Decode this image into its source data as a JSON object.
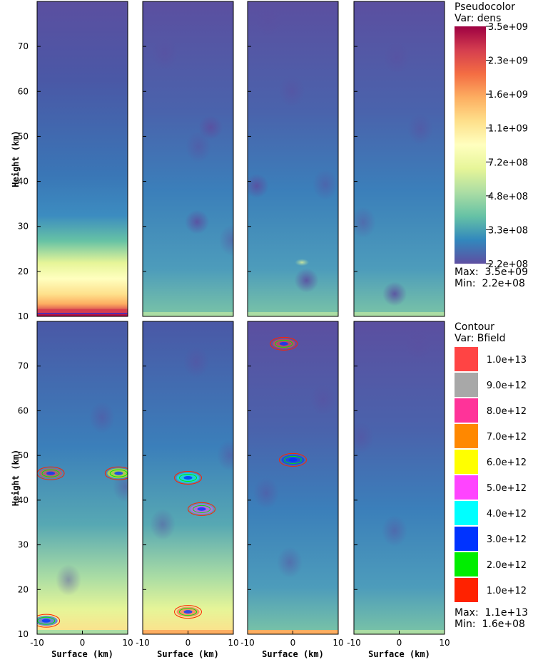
{
  "figure": {
    "y_ticks": [
      "10",
      "20",
      "30",
      "40",
      "50",
      "60",
      "70"
    ],
    "x_ticks": [
      "-10",
      "0",
      "10"
    ],
    "x_label": "Surface (km)",
    "y_label": "Height (km)",
    "colors": {
      "background_deep": "#5b4fa0",
      "background_mid": "#3b7fba",
      "frame": "#000000"
    }
  },
  "pseudocolor_legend": {
    "title": "Pseudocolor",
    "variable": "Var: dens",
    "labels": [
      "3.5e+09",
      "2.3e+09",
      "1.6e+09",
      "1.1e+09",
      "7.2e+08",
      "4.8e+08",
      "3.3e+08",
      "2.2e+08"
    ],
    "max_text": "Max:  3.5e+09",
    "min_text": "Min:  2.2e+08",
    "gradient_colors": [
      "#9e0142",
      "#d53e4f",
      "#f46d43",
      "#fdae61",
      "#fee08b",
      "#ffffbf",
      "#e6f598",
      "#abdda4",
      "#66c2a5",
      "#3288bd",
      "#5e4fa2"
    ]
  },
  "contour_legend": {
    "title": "Contour",
    "variable": "Var: Bfield",
    "labels": [
      "1.0e+13",
      "9.0e+12",
      "8.0e+12",
      "7.0e+12",
      "6.0e+12",
      "5.0e+12",
      "4.0e+12",
      "3.0e+12",
      "2.0e+12",
      "1.0e+12"
    ],
    "colors": [
      "#ff4444",
      "#a8a8a8",
      "#ff3399",
      "#ff8800",
      "#ffff00",
      "#ff44ff",
      "#00ffff",
      "#0033ff",
      "#00ee00",
      "#ff2200"
    ],
    "max_text": "Max:  1.1e+13",
    "min_text": "Min:  1.6e+08"
  },
  "chart_data": {
    "type": "heatmap",
    "description_axes": {
      "xlabel": "Surface (km)",
      "ylabel": "Height (km)",
      "xlim": [
        -10,
        10
      ],
      "ylim": [
        10,
        80
      ]
    },
    "panels": [
      {
        "row": 0,
        "col": 0,
        "field": "dens",
        "dense_layer_top_km": 21,
        "features": [
          {
            "x": -5,
            "y": 11,
            "value": 3500000000.0
          }
        ]
      },
      {
        "row": 0,
        "col": 1,
        "field": "dens",
        "features": [
          {
            "x": 2,
            "y": 31,
            "value": 220000000.0
          },
          {
            "x": 5,
            "y": 52,
            "value": 220000000.0
          }
        ]
      },
      {
        "row": 0,
        "col": 2,
        "field": "dens",
        "features": [
          {
            "x": 3,
            "y": 18,
            "value": 220000000.0
          },
          {
            "x": 2,
            "y": 22,
            "value": 1100000000.0
          },
          {
            "x": -8,
            "y": 39,
            "value": 220000000.0
          }
        ]
      },
      {
        "row": 0,
        "col": 3,
        "field": "dens",
        "features": [
          {
            "x": -1,
            "y": 15,
            "value": 220000000.0
          }
        ]
      },
      {
        "row": 1,
        "col": 0,
        "field": "dens",
        "features": [
          {
            "x": -7,
            "y": 46,
            "value": 11000000000000.0
          },
          {
            "x": 8,
            "y": 46,
            "value": 6000000000000.0
          },
          {
            "x": -8,
            "y": 13,
            "value": 3000000000000.0
          }
        ]
      },
      {
        "row": 1,
        "col": 1,
        "field": "dens",
        "features": [
          {
            "x": 0,
            "y": 45,
            "value": 4000000000000.0
          },
          {
            "x": 3,
            "y": 38,
            "value": 5000000000000.0
          },
          {
            "x": 0,
            "y": 15,
            "value": 10000000000000.0
          }
        ]
      },
      {
        "row": 1,
        "col": 2,
        "field": "dens",
        "features": [
          {
            "x": -2,
            "y": 75,
            "value": 10000000000000.0
          },
          {
            "x": 0,
            "y": 49,
            "value": 3000000000000.0
          }
        ]
      },
      {
        "row": 1,
        "col": 3,
        "field": "dens",
        "features": []
      }
    ]
  }
}
